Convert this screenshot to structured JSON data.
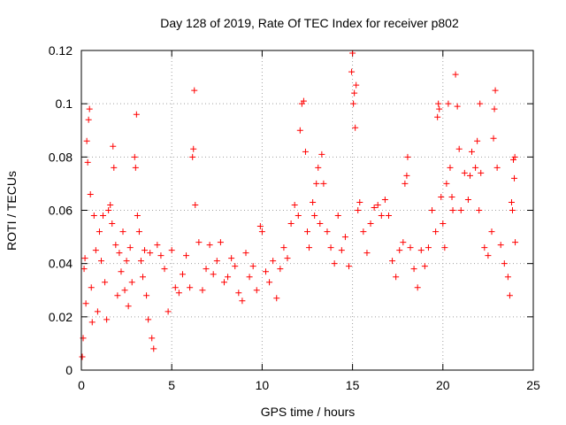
{
  "chart_data": {
    "type": "scatter",
    "title": "Day 128 of 2019, Rate Of TEC Index for receiver p802",
    "xlabel": "GPS time / hours",
    "ylabel": "ROTI / TECUs",
    "xlim": [
      0,
      25
    ],
    "ylim": [
      0,
      0.12
    ],
    "x_ticks": [
      "0",
      "5",
      "10",
      "15",
      "20",
      "25"
    ],
    "y_ticks": [
      "0",
      "0.02",
      "0.04",
      "0.06",
      "0.08",
      "0.1",
      "0.12"
    ],
    "grid": true,
    "marker": "plus",
    "color": "#ff0000",
    "series": [
      {
        "points": [
          [
            0.05,
            0.005
          ],
          [
            0.1,
            0.012
          ],
          [
            0.15,
            0.038
          ],
          [
            0.2,
            0.042
          ],
          [
            0.25,
            0.025
          ],
          [
            0.3,
            0.086
          ],
          [
            0.35,
            0.078
          ],
          [
            0.4,
            0.094
          ],
          [
            0.45,
            0.098
          ],
          [
            0.5,
            0.066
          ],
          [
            0.55,
            0.031
          ],
          [
            0.6,
            0.018
          ],
          [
            0.7,
            0.058
          ],
          [
            0.8,
            0.045
          ],
          [
            0.9,
            0.022
          ],
          [
            1.0,
            0.052
          ],
          [
            1.1,
            0.041
          ],
          [
            1.2,
            0.058
          ],
          [
            1.3,
            0.033
          ],
          [
            1.4,
            0.019
          ],
          [
            1.5,
            0.06
          ],
          [
            1.6,
            0.062
          ],
          [
            1.7,
            0.055
          ],
          [
            1.75,
            0.084
          ],
          [
            1.8,
            0.076
          ],
          [
            1.9,
            0.047
          ],
          [
            2.0,
            0.028
          ],
          [
            2.1,
            0.044
          ],
          [
            2.2,
            0.037
          ],
          [
            2.3,
            0.052
          ],
          [
            2.4,
            0.03
          ],
          [
            2.5,
            0.041
          ],
          [
            2.6,
            0.024
          ],
          [
            2.7,
            0.046
          ],
          [
            2.8,
            0.033
          ],
          [
            2.95,
            0.08
          ],
          [
            3.0,
            0.076
          ],
          [
            3.05,
            0.096
          ],
          [
            3.1,
            0.058
          ],
          [
            3.2,
            0.052
          ],
          [
            3.3,
            0.041
          ],
          [
            3.4,
            0.035
          ],
          [
            3.5,
            0.045
          ],
          [
            3.6,
            0.028
          ],
          [
            3.7,
            0.019
          ],
          [
            3.8,
            0.044
          ],
          [
            3.9,
            0.012
          ],
          [
            4.0,
            0.008
          ],
          [
            4.2,
            0.047
          ],
          [
            4.4,
            0.043
          ],
          [
            4.6,
            0.038
          ],
          [
            4.8,
            0.022
          ],
          [
            5.0,
            0.045
          ],
          [
            5.2,
            0.031
          ],
          [
            5.4,
            0.029
          ],
          [
            5.6,
            0.036
          ],
          [
            5.8,
            0.043
          ],
          [
            6.0,
            0.031
          ],
          [
            6.15,
            0.08
          ],
          [
            6.2,
            0.083
          ],
          [
            6.25,
            0.105
          ],
          [
            6.3,
            0.062
          ],
          [
            6.5,
            0.048
          ],
          [
            6.7,
            0.03
          ],
          [
            6.9,
            0.038
          ],
          [
            7.1,
            0.047
          ],
          [
            7.3,
            0.036
          ],
          [
            7.5,
            0.041
          ],
          [
            7.7,
            0.048
          ],
          [
            7.9,
            0.033
          ],
          [
            8.1,
            0.035
          ],
          [
            8.3,
            0.042
          ],
          [
            8.5,
            0.039
          ],
          [
            8.7,
            0.029
          ],
          [
            8.9,
            0.026
          ],
          [
            9.1,
            0.044
          ],
          [
            9.3,
            0.035
          ],
          [
            9.5,
            0.039
          ],
          [
            9.7,
            0.03
          ],
          [
            9.9,
            0.054
          ],
          [
            10.0,
            0.052
          ],
          [
            10.2,
            0.037
          ],
          [
            10.4,
            0.033
          ],
          [
            10.6,
            0.041
          ],
          [
            10.8,
            0.027
          ],
          [
            11.0,
            0.038
          ],
          [
            11.2,
            0.046
          ],
          [
            11.4,
            0.042
          ],
          [
            11.6,
            0.055
          ],
          [
            11.8,
            0.062
          ],
          [
            12.0,
            0.058
          ],
          [
            12.1,
            0.09
          ],
          [
            12.2,
            0.1
          ],
          [
            12.3,
            0.101
          ],
          [
            12.4,
            0.082
          ],
          [
            12.5,
            0.052
          ],
          [
            12.6,
            0.046
          ],
          [
            12.8,
            0.063
          ],
          [
            12.9,
            0.058
          ],
          [
            13.0,
            0.07
          ],
          [
            13.1,
            0.076
          ],
          [
            13.2,
            0.055
          ],
          [
            13.3,
            0.081
          ],
          [
            13.4,
            0.07
          ],
          [
            13.6,
            0.052
          ],
          [
            13.8,
            0.046
          ],
          [
            14.0,
            0.04
          ],
          [
            14.2,
            0.058
          ],
          [
            14.4,
            0.045
          ],
          [
            14.6,
            0.05
          ],
          [
            14.8,
            0.039
          ],
          [
            14.95,
            0.112
          ],
          [
            15.0,
            0.119
          ],
          [
            15.05,
            0.1
          ],
          [
            15.1,
            0.104
          ],
          [
            15.15,
            0.091
          ],
          [
            15.2,
            0.107
          ],
          [
            15.3,
            0.06
          ],
          [
            15.4,
            0.063
          ],
          [
            15.6,
            0.052
          ],
          [
            15.8,
            0.044
          ],
          [
            16.0,
            0.055
          ],
          [
            16.2,
            0.061
          ],
          [
            16.4,
            0.062
          ],
          [
            16.6,
            0.058
          ],
          [
            16.8,
            0.064
          ],
          [
            17.0,
            0.058
          ],
          [
            17.2,
            0.041
          ],
          [
            17.4,
            0.035
          ],
          [
            17.6,
            0.045
          ],
          [
            17.8,
            0.048
          ],
          [
            17.9,
            0.07
          ],
          [
            18.0,
            0.073
          ],
          [
            18.05,
            0.08
          ],
          [
            18.2,
            0.046
          ],
          [
            18.4,
            0.038
          ],
          [
            18.6,
            0.031
          ],
          [
            18.8,
            0.045
          ],
          [
            19.0,
            0.039
          ],
          [
            19.2,
            0.046
          ],
          [
            19.4,
            0.06
          ],
          [
            19.6,
            0.052
          ],
          [
            19.7,
            0.095
          ],
          [
            19.75,
            0.1
          ],
          [
            19.8,
            0.098
          ],
          [
            19.9,
            0.065
          ],
          [
            20.0,
            0.055
          ],
          [
            20.1,
            0.046
          ],
          [
            20.2,
            0.07
          ],
          [
            20.3,
            0.1
          ],
          [
            20.4,
            0.076
          ],
          [
            20.5,
            0.065
          ],
          [
            20.55,
            0.06
          ],
          [
            20.7,
            0.111
          ],
          [
            20.8,
            0.099
          ],
          [
            20.9,
            0.083
          ],
          [
            21.0,
            0.06
          ],
          [
            21.2,
            0.074
          ],
          [
            21.4,
            0.064
          ],
          [
            21.5,
            0.073
          ],
          [
            21.6,
            0.082
          ],
          [
            21.8,
            0.076
          ],
          [
            21.9,
            0.086
          ],
          [
            22.0,
            0.06
          ],
          [
            22.05,
            0.1
          ],
          [
            22.1,
            0.074
          ],
          [
            22.3,
            0.046
          ],
          [
            22.5,
            0.043
          ],
          [
            22.7,
            0.052
          ],
          [
            22.8,
            0.087
          ],
          [
            22.85,
            0.098
          ],
          [
            22.9,
            0.105
          ],
          [
            23.0,
            0.076
          ],
          [
            23.2,
            0.047
          ],
          [
            23.4,
            0.04
          ],
          [
            23.6,
            0.035
          ],
          [
            23.7,
            0.028
          ],
          [
            23.8,
            0.063
          ],
          [
            23.85,
            0.06
          ],
          [
            23.9,
            0.079
          ],
          [
            23.95,
            0.072
          ],
          [
            23.98,
            0.08
          ],
          [
            24.0,
            0.048
          ]
        ]
      }
    ]
  }
}
